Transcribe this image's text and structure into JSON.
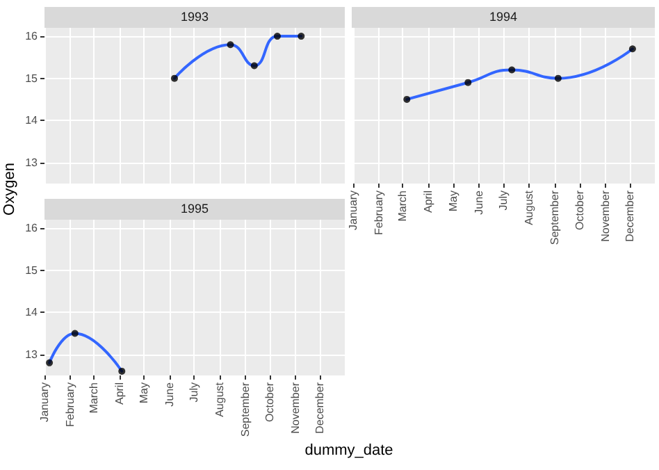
{
  "chart_data": [
    {
      "type": "line",
      "title": "1993",
      "ylabel": "Oxygen",
      "xlim": [
        "--01-01",
        "--12-31"
      ],
      "ylim": [
        12.5,
        16.2
      ],
      "yticks": [
        13,
        14,
        15,
        16
      ],
      "xticks": [
        {
          "value": "--01-01",
          "label": "January"
        },
        {
          "value": "--02-01",
          "label": "February"
        },
        {
          "value": "--03-01",
          "label": "March"
        },
        {
          "value": "--04-01",
          "label": "April"
        },
        {
          "value": "--05-01",
          "label": "May"
        },
        {
          "value": "--06-01",
          "label": "June"
        },
        {
          "value": "--07-01",
          "label": "July"
        },
        {
          "value": "--08-01",
          "label": "August"
        },
        {
          "value": "--09-01",
          "label": "September"
        },
        {
          "value": "--10-01",
          "label": "October"
        },
        {
          "value": "--11-01",
          "label": "November"
        },
        {
          "value": "--12-01",
          "label": "December"
        }
      ],
      "tick_labels": "y",
      "grid": true,
      "series": [
        {
          "color": "#3366ff",
          "marker": "none",
          "x": [
            "--06-07",
            "--08-14",
            "--09-12",
            "--10-10",
            "--11-08"
          ],
          "values": [
            15.0,
            15.8,
            15.3,
            16.0,
            16.0
          ]
        },
        {
          "type": "scatter",
          "color": "#000000",
          "marker": "circle",
          "x": [
            "--06-07",
            "--08-14",
            "--09-12",
            "--10-10",
            "--11-08"
          ],
          "values": [
            15.0,
            15.8,
            15.3,
            16.0,
            16.0
          ]
        }
      ]
    },
    {
      "type": "line",
      "title": "1994",
      "xlim": [
        "--01-01",
        "--12-31"
      ],
      "ylim": [
        12.5,
        16.2
      ],
      "yticks": [
        13,
        14,
        15,
        16
      ],
      "xticks": [
        {
          "value": "--01-01",
          "label": "January"
        },
        {
          "value": "--02-01",
          "label": "February"
        },
        {
          "value": "--03-01",
          "label": "March"
        },
        {
          "value": "--04-01",
          "label": "April"
        },
        {
          "value": "--05-01",
          "label": "May"
        },
        {
          "value": "--06-01",
          "label": "June"
        },
        {
          "value": "--07-01",
          "label": "July"
        },
        {
          "value": "--08-01",
          "label": "August"
        },
        {
          "value": "--09-01",
          "label": "September"
        },
        {
          "value": "--10-01",
          "label": "October"
        },
        {
          "value": "--11-01",
          "label": "November"
        },
        {
          "value": "--12-01",
          "label": "December"
        }
      ],
      "tick_labels": "x",
      "grid": true,
      "series": [
        {
          "color": "#3366ff",
          "marker": "none",
          "x": [
            "--03-06",
            "--05-19",
            "--07-11",
            "--09-05",
            "--12-04"
          ],
          "values": [
            14.5,
            14.9,
            15.2,
            15.0,
            15.7
          ]
        },
        {
          "type": "scatter",
          "color": "#000000",
          "marker": "circle",
          "x": [
            "--03-06",
            "--05-19",
            "--07-11",
            "--09-05",
            "--12-04"
          ],
          "values": [
            14.5,
            14.9,
            15.2,
            15.0,
            15.7
          ]
        }
      ]
    },
    {
      "type": "line",
      "title": "1995",
      "xlabel": "dummy_date",
      "xlim": [
        "--01-01",
        "--12-31"
      ],
      "ylim": [
        12.5,
        16.2
      ],
      "yticks": [
        13,
        14,
        15,
        16
      ],
      "xticks": [
        {
          "value": "--01-01",
          "label": "January"
        },
        {
          "value": "--02-01",
          "label": "February"
        },
        {
          "value": "--03-01",
          "label": "March"
        },
        {
          "value": "--04-01",
          "label": "April"
        },
        {
          "value": "--05-01",
          "label": "May"
        },
        {
          "value": "--06-01",
          "label": "June"
        },
        {
          "value": "--07-01",
          "label": "July"
        },
        {
          "value": "--08-01",
          "label": "August"
        },
        {
          "value": "--09-01",
          "label": "September"
        },
        {
          "value": "--10-01",
          "label": "October"
        },
        {
          "value": "--11-01",
          "label": "November"
        },
        {
          "value": "--12-01",
          "label": "December"
        }
      ],
      "grid": true,
      "series": [
        {
          "color": "#3366ff",
          "marker": "none",
          "x": [
            "--01-07",
            "--02-07",
            "--04-04"
          ],
          "values": [
            12.8,
            13.5,
            12.6
          ]
        },
        {
          "type": "scatter",
          "color": "#000000",
          "marker": "circle",
          "x": [
            "--01-07",
            "--02-07",
            "--04-04"
          ],
          "values": [
            12.8,
            13.5,
            12.6
          ]
        }
      ]
    }
  ]
}
